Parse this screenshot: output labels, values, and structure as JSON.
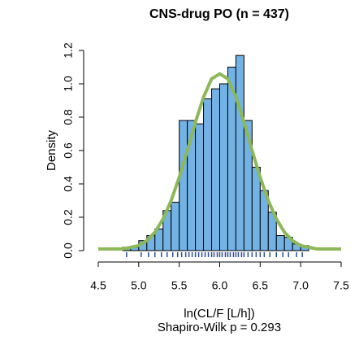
{
  "chart_data": {
    "type": "histogram",
    "title": "CNS-drug PO (n = 437)",
    "y_label": "Density",
    "x_label": "ln(CL/F [L/h])",
    "subtitle": "Shapiro-Wilk p = 0.293",
    "bins": [
      4.8,
      4.9,
      5.0,
      5.1,
      5.2,
      5.3,
      5.4,
      5.5,
      5.6,
      5.7,
      5.8,
      5.9,
      6.0,
      6.1,
      6.2,
      6.3,
      6.4,
      6.5,
      6.6,
      6.7,
      6.8,
      6.9,
      7.0,
      7.1
    ],
    "values": [
      0.02,
      0.02,
      0.06,
      0.09,
      0.13,
      0.24,
      0.29,
      0.78,
      0.78,
      0.76,
      0.91,
      0.97,
      1.0,
      1.1,
      1.17,
      0.78,
      0.5,
      0.36,
      0.23,
      0.09,
      0.08,
      0.04,
      0.03
    ],
    "color": "#72b2e4",
    "density_curve": {
      "color": "#8db85a",
      "x": [
        4.5,
        4.6,
        4.7,
        4.8,
        4.9,
        5.0,
        5.1,
        5.2,
        5.3,
        5.4,
        5.5,
        5.6,
        5.7,
        5.8,
        5.9,
        6.0,
        6.1,
        6.2,
        6.3,
        6.4,
        6.5,
        6.6,
        6.7,
        6.8,
        6.9,
        7.0,
        7.1,
        7.2,
        7.3,
        7.4,
        7.5
      ],
      "values": [
        0.01,
        0.01,
        0.01,
        0.01,
        0.02,
        0.03,
        0.06,
        0.11,
        0.19,
        0.3,
        0.44,
        0.6,
        0.77,
        0.92,
        1.03,
        1.06,
        1.03,
        0.92,
        0.77,
        0.6,
        0.44,
        0.3,
        0.19,
        0.11,
        0.06,
        0.03,
        0.02,
        0.01,
        0.01,
        0.01,
        0.01
      ]
    },
    "rug": {
      "color": "#2b4d9e",
      "values": [
        4.85,
        5.03,
        5.12,
        5.2,
        5.28,
        5.35,
        5.42,
        5.48,
        5.53,
        5.58,
        5.62,
        5.66,
        5.7,
        5.74,
        5.78,
        5.82,
        5.86,
        5.9,
        5.93,
        5.97,
        6.0,
        6.03,
        6.07,
        6.1,
        6.13,
        6.17,
        6.2,
        6.23,
        6.27,
        6.3,
        6.35,
        6.4,
        6.45,
        6.5,
        6.55,
        6.62,
        6.7,
        6.78,
        6.85,
        6.95,
        7.02
      ]
    },
    "xlim": [
      4.5,
      7.5
    ],
    "xticks": [
      4.5,
      {
        "value": 5,
        "label": "5.0"
      },
      5.5,
      {
        "value": 6,
        "label": "6.0"
      },
      6.5,
      {
        "value": 7,
        "label": "7.0"
      },
      7.5
    ],
    "ylim": [
      0,
      1.2
    ],
    "yticks": [
      {
        "value": 0,
        "label": "0.0"
      },
      0.2,
      0.4,
      0.6,
      0.8,
      {
        "value": 1,
        "label": "1.0"
      },
      1.2
    ]
  }
}
